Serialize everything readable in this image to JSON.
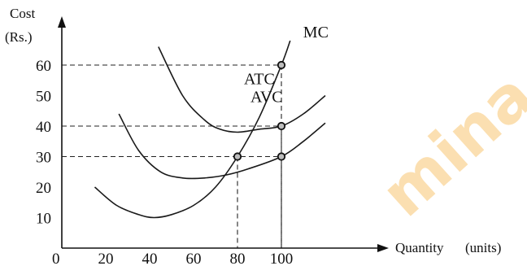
{
  "chart_data": {
    "type": "line",
    "title": "",
    "ylabel_lines": [
      "Cost",
      "(Rs.)"
    ],
    "xlabel": "Quantity",
    "xlabel_unit": "(units)",
    "origin_label": "0",
    "xlim": [
      0,
      120
    ],
    "ylim": [
      0,
      70
    ],
    "x_ticks": [
      20,
      40,
      60,
      80,
      100
    ],
    "y_ticks": [
      10,
      20,
      30,
      40,
      50,
      60
    ],
    "grid": false,
    "series": [
      {
        "name": "MC",
        "x": [
          15,
          25,
          35,
          42,
          50,
          60,
          70,
          80,
          90,
          100,
          104
        ],
        "y": [
          20,
          14,
          11,
          10,
          11,
          14,
          20,
          30,
          43,
          60,
          68
        ]
      },
      {
        "name": "ATC",
        "x": [
          44,
          55,
          65,
          72,
          80,
          90,
          100,
          110,
          120
        ],
        "y": [
          66,
          50,
          42,
          39,
          38,
          39,
          40,
          44,
          50
        ]
      },
      {
        "name": "AVC",
        "x": [
          26,
          35,
          45,
          55,
          65,
          75,
          85,
          100,
          110,
          120
        ],
        "y": [
          44,
          32,
          25,
          23,
          23,
          24,
          26,
          30,
          35,
          41
        ]
      }
    ],
    "guides": [
      {
        "x": 80,
        "y": 30
      },
      {
        "x": 100,
        "y": 60
      },
      {
        "x": 100,
        "y": 40
      },
      {
        "x": 100,
        "y": 30
      }
    ],
    "watermark": "mina"
  }
}
